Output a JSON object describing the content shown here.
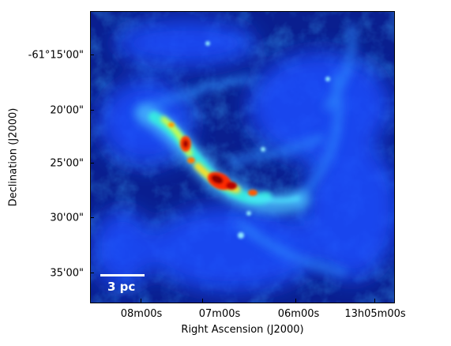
{
  "axes": {
    "xlabel": "Right Ascension (J2000)",
    "ylabel": "Declination (J2000)",
    "xticks": [
      "08m00s",
      "07m00s",
      "06m00s",
      "13h05m00s"
    ],
    "yticks": [
      "-61°15'00\"",
      "20'00\"",
      "25'00\"",
      "30'00\"",
      "35'00\""
    ]
  },
  "scalebar": {
    "label": "3 pc"
  },
  "colors": {
    "background": "#0a1f8f",
    "colormap": "jet"
  }
}
